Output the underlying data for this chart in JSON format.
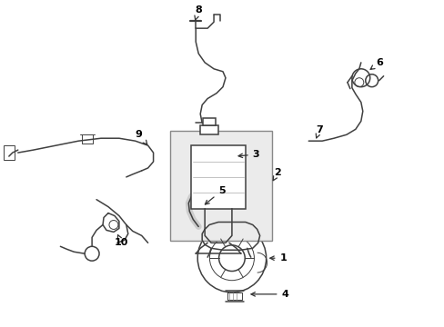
{
  "background_color": "#ffffff",
  "line_color": "#404040",
  "label_color": "#000000",
  "box_fill": "#ebebeb",
  "box_stroke": "#666666",
  "figsize": [
    4.89,
    3.6
  ],
  "dpi": 100
}
